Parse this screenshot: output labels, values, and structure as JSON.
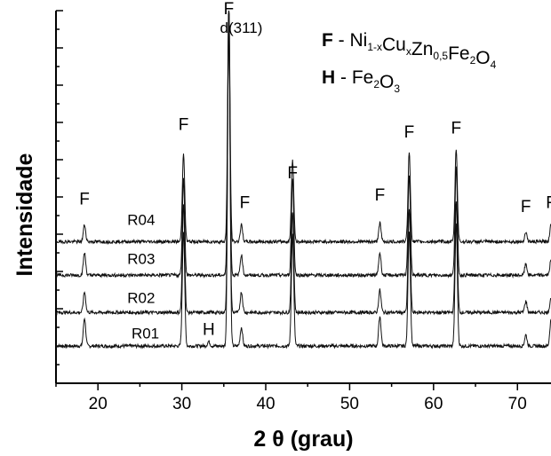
{
  "chart_data": {
    "type": "line",
    "title": "",
    "xlabel": "2 θ (grau)",
    "ylabel": "Intensidade",
    "xlim": [
      15,
      74
    ],
    "x_ticks": [
      "20",
      "30",
      "40",
      "50",
      "60",
      "70"
    ],
    "y_ticks_labeled": false,
    "grid": false,
    "legend": {
      "placement": "top-right",
      "entries": [
        {
          "symbol": "F",
          "separator": " - ",
          "formula": [
            {
              "t": "Ni"
            },
            {
              "t": "1-x",
              "sub": true
            },
            {
              "t": "Cu"
            },
            {
              "t": "x",
              "sub": true
            },
            {
              "t": "Zn"
            },
            {
              "t": "0,5",
              "sub": true
            },
            {
              "t": "Fe"
            },
            {
              "t": "2",
              "sub": true
            },
            {
              "t": "O"
            },
            {
              "t": "4",
              "sub": true
            }
          ]
        },
        {
          "symbol": "H",
          "separator": " - ",
          "formula": [
            {
              "t": "Fe"
            },
            {
              "t": "2",
              "sub": true
            },
            {
              "t": "O"
            },
            {
              "t": "3",
              "sub": true
            }
          ]
        }
      ]
    },
    "series": [
      {
        "name": "R01",
        "baseline": 1.0,
        "peaks": [
          [
            18.4,
            0.75
          ],
          [
            30.2,
            3.1
          ],
          [
            33.2,
            0.12
          ],
          [
            35.6,
            9.5
          ],
          [
            37.1,
            0.5
          ],
          [
            43.2,
            3.0
          ],
          [
            53.6,
            0.8
          ],
          [
            57.1,
            3.1
          ],
          [
            62.7,
            3.3
          ],
          [
            71.0,
            0.3
          ],
          [
            74.0,
            0.7
          ]
        ]
      },
      {
        "name": "R02",
        "baseline": 1.9,
        "peaks": [
          [
            18.4,
            0.55
          ],
          [
            30.2,
            2.9
          ],
          [
            35.6,
            7.7
          ],
          [
            37.1,
            0.55
          ],
          [
            43.2,
            2.7
          ],
          [
            53.6,
            0.6
          ],
          [
            57.1,
            2.8
          ],
          [
            62.7,
            3.0
          ],
          [
            71.0,
            0.3
          ],
          [
            74.0,
            0.4
          ]
        ]
      },
      {
        "name": "R03",
        "baseline": 2.9,
        "peaks": [
          [
            18.4,
            0.6
          ],
          [
            30.2,
            2.6
          ],
          [
            35.6,
            7.0
          ],
          [
            37.1,
            0.55
          ],
          [
            43.2,
            2.6
          ],
          [
            53.6,
            0.6
          ],
          [
            57.1,
            2.7
          ],
          [
            62.7,
            2.9
          ],
          [
            71.0,
            0.3
          ],
          [
            74.0,
            0.4
          ]
        ]
      },
      {
        "name": "R04",
        "baseline": 3.8,
        "peaks": [
          [
            18.4,
            0.45
          ],
          [
            30.2,
            2.4
          ],
          [
            35.6,
            6.4
          ],
          [
            37.1,
            0.45
          ],
          [
            43.2,
            2.2
          ],
          [
            53.6,
            0.5
          ],
          [
            57.1,
            2.4
          ],
          [
            62.7,
            2.5
          ],
          [
            71.0,
            0.25
          ],
          [
            74.0,
            0.45
          ]
        ]
      }
    ],
    "annotations": [
      {
        "text": "F",
        "x": 18.4,
        "y": 4.8
      },
      {
        "text": "F",
        "x": 30.2,
        "y": 6.8
      },
      {
        "text": "F",
        "x": 35.6,
        "y": 9.9
      },
      {
        "text": "d(311)",
        "x": 35.6,
        "y": 9.4
      },
      {
        "text": "F",
        "x": 37.5,
        "y": 4.7
      },
      {
        "text": "F",
        "x": 43.2,
        "y": 5.5
      },
      {
        "text": "F",
        "x": 53.6,
        "y": 4.9
      },
      {
        "text": "F",
        "x": 57.1,
        "y": 6.6
      },
      {
        "text": "F",
        "x": 62.7,
        "y": 6.7
      },
      {
        "text": "F",
        "x": 71.0,
        "y": 4.6
      },
      {
        "text": "F",
        "x": 74.0,
        "y": 4.7
      },
      {
        "text": "H",
        "x": 33.2,
        "y": 1.3
      }
    ],
    "sample_labels": [
      {
        "text": "R04",
        "x": 23.5,
        "y": 4.25
      },
      {
        "text": "R03",
        "x": 23.5,
        "y": 3.2
      },
      {
        "text": "R02",
        "x": 23.5,
        "y": 2.15
      },
      {
        "text": "R01",
        "x": 24.0,
        "y": 1.2
      }
    ]
  }
}
